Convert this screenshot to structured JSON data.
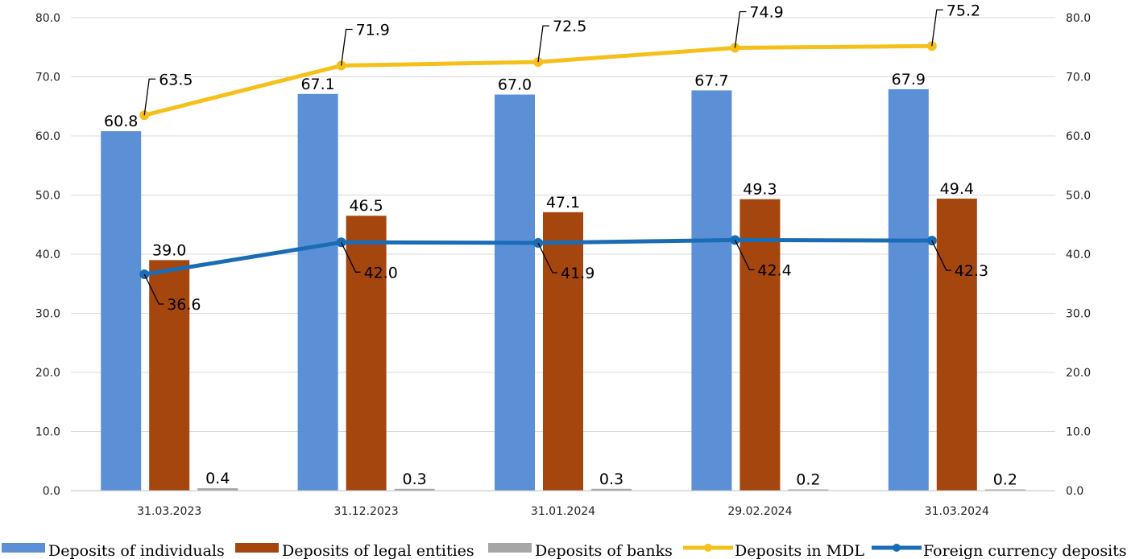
{
  "chart_data": {
    "type": "bar",
    "categories": [
      "31.03.2023",
      "31.12.2023",
      "31.01.2024",
      "29.02.2024",
      "31.03.2024"
    ],
    "bar_series": [
      {
        "name": "Deposits of individuals",
        "color": "#5B8FD6",
        "values": [
          60.8,
          67.1,
          67.0,
          67.7,
          67.9
        ],
        "labels": [
          "60.8",
          "67.1",
          "67.0",
          "67.7",
          "67.9"
        ]
      },
      {
        "name": "Deposits of legal entities",
        "color": "#A5460F",
        "values": [
          39.0,
          46.5,
          47.1,
          49.3,
          49.4
        ],
        "labels": [
          "39.0",
          "46.5",
          "47.1",
          "49.3",
          "49.4"
        ]
      },
      {
        "name": "Deposits of banks",
        "color": "#A6A6A6",
        "values": [
          0.4,
          0.3,
          0.3,
          0.2,
          0.2
        ],
        "labels": [
          "0.4",
          "0.3",
          "0.3",
          "0.2",
          "0.2"
        ]
      }
    ],
    "line_series": [
      {
        "name": "Deposits in MDL",
        "color": "#F5C01A",
        "axis": "right",
        "values": [
          63.5,
          71.9,
          72.5,
          74.9,
          75.2
        ],
        "labels": [
          "63.5",
          "71.9",
          "72.5",
          "74.9",
          "75.2"
        ]
      },
      {
        "name": "Foreign currency deposits",
        "color": "#1A6DB5",
        "axis": "right",
        "values": [
          36.6,
          42.0,
          41.9,
          42.4,
          42.3
        ],
        "labels": [
          "36.6",
          "42.0",
          "41.9",
          "42.4",
          "42.3"
        ]
      }
    ],
    "ylim": [
      0,
      80
    ],
    "y2lim": [
      0,
      80
    ],
    "yticks": [
      "0.0",
      "10.0",
      "20.0",
      "30.0",
      "40.0",
      "50.0",
      "60.0",
      "70.0",
      "80.0"
    ],
    "y2ticks": [
      "0.0",
      "10.0",
      "20.0",
      "30.0",
      "40.0",
      "50.0",
      "60.0",
      "70.0",
      "80.0"
    ],
    "grid": true,
    "legend_position": "bottom"
  }
}
